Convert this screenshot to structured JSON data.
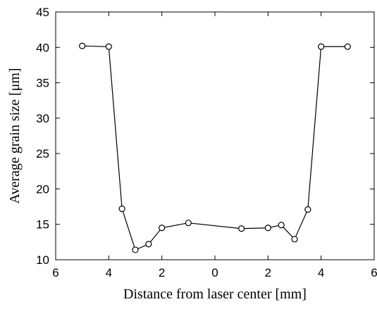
{
  "chart_data": {
    "type": "line",
    "xlabel": "Distance from laser center [mm]",
    "ylabel": "Average grain size [μm]",
    "xlim": [
      -6,
      6
    ],
    "ylim": [
      10,
      45
    ],
    "x_ticks": [
      -6,
      -4,
      -2,
      0,
      2,
      4,
      6
    ],
    "x_tick_labels": [
      "6",
      "4",
      "2",
      "0",
      "2",
      "4",
      "6"
    ],
    "y_ticks": [
      10,
      15,
      20,
      25,
      30,
      35,
      40,
      45
    ],
    "y_tick_labels": [
      "10",
      "15",
      "20",
      "25",
      "30",
      "35",
      "40",
      "45"
    ],
    "grid": false,
    "legend": false,
    "series": [
      {
        "x": [
          -5,
          -4,
          -3.5,
          -3,
          -2.5,
          -2,
          -1,
          1,
          2,
          2.5,
          3,
          3.5,
          4,
          5
        ],
        "y": [
          40.2,
          40.1,
          17.2,
          11.4,
          12.2,
          14.5,
          15.2,
          14.4,
          14.5,
          14.9,
          12.9,
          17.1,
          40.1,
          40.1
        ],
        "marker": "circle-open",
        "color": "#000000"
      }
    ]
  }
}
